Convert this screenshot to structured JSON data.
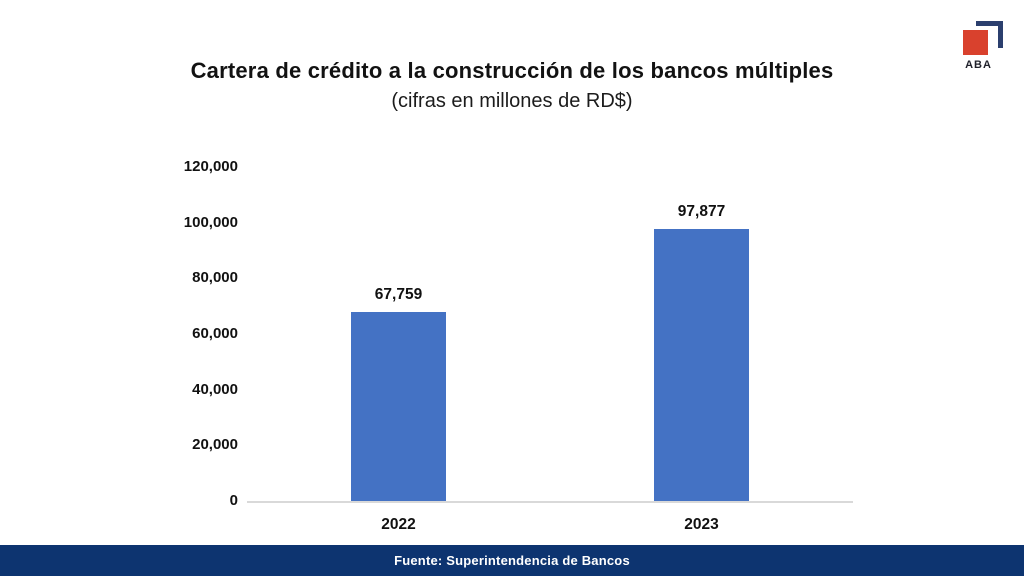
{
  "logo": {
    "text": "ABA",
    "square_color": "#D9412D",
    "bracket_color": "#2B3F6E"
  },
  "footer": {
    "text": "Fuente: Superintendencia de Bancos",
    "background": "#0D3470"
  },
  "chart_data": {
    "type": "bar",
    "title": "Cartera de crédito a la construcción de los bancos múltiples",
    "subtitle": "(cifras en millones de RD$)",
    "categories": [
      "2022",
      "2023"
    ],
    "values": [
      67759,
      97877
    ],
    "value_labels": [
      "67,759",
      "97,877"
    ],
    "ylim": [
      0,
      120000
    ],
    "y_ticks": [
      0,
      20000,
      40000,
      60000,
      80000,
      100000,
      120000
    ],
    "y_tick_labels": [
      "0",
      "20,000",
      "40,000",
      "60,000",
      "80,000",
      "100,000",
      "120,000"
    ],
    "xlabel": "",
    "ylabel": "",
    "grid": false,
    "legend": false,
    "bar_color": "#4472C4",
    "axis_line_color": "#D9D9D9",
    "label_color": "#111111"
  }
}
